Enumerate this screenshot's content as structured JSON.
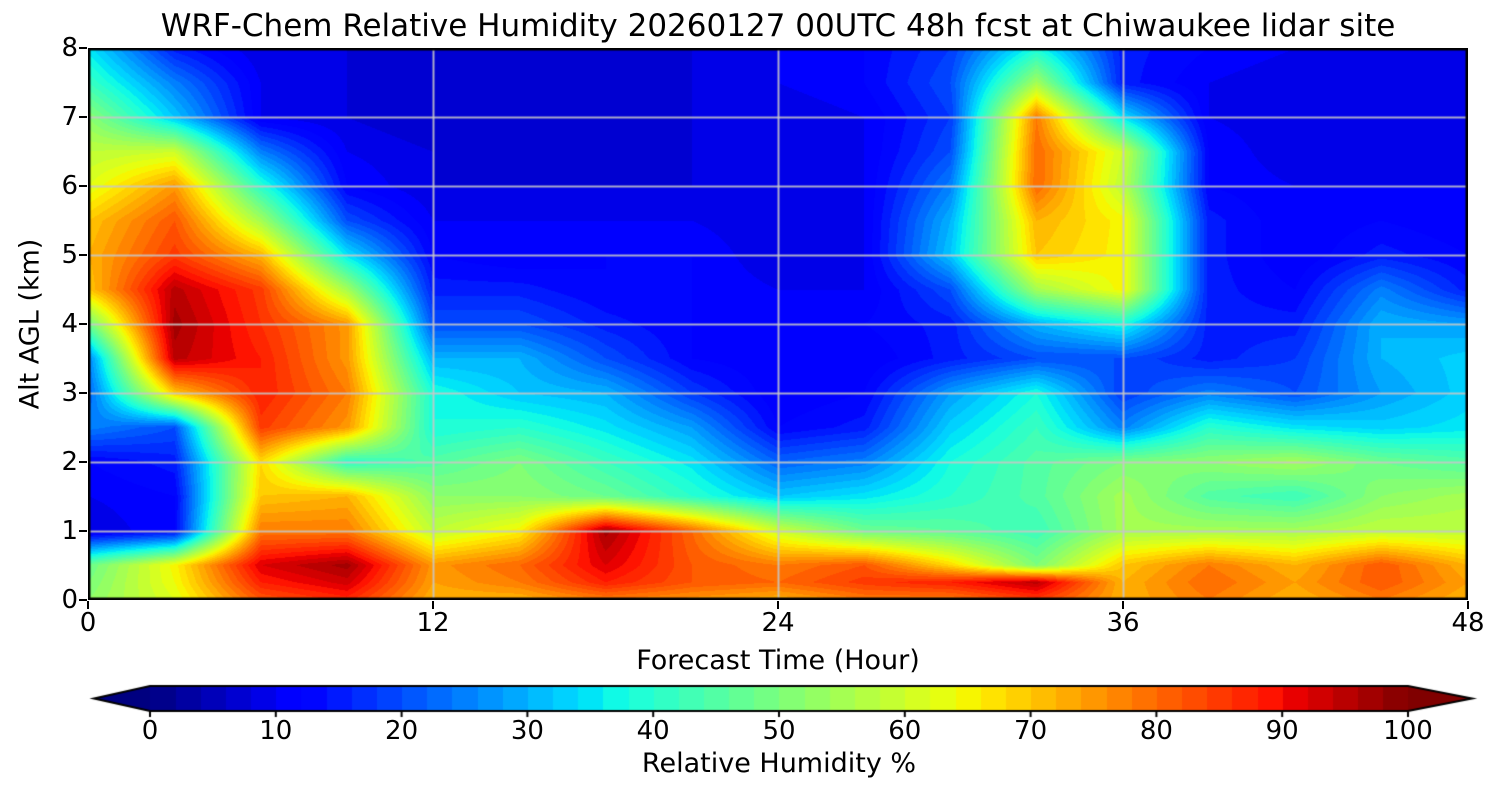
{
  "title": "WRF-Chem Relative Humidity 20260127 00UTC 48h fcst at Chiwaukee lidar site",
  "chart_data": {
    "type": "heatmap",
    "title": "WRF-Chem Relative Humidity 20260127 00UTC 48h fcst at Chiwaukee lidar site",
    "xlabel": "Forecast Time (Hour)",
    "ylabel": "Alt AGL (km)",
    "xlim": [
      0,
      48
    ],
    "ylim": [
      0,
      8
    ],
    "x_ticks": [
      0,
      12,
      24,
      36,
      48
    ],
    "y_ticks": [
      0,
      1,
      2,
      3,
      4,
      5,
      6,
      7,
      8
    ],
    "grid": true,
    "grid_x_lines": [
      12,
      24,
      36
    ],
    "grid_y_lines": [
      1,
      2,
      3,
      4,
      5,
      6,
      7
    ],
    "colormap": "jet",
    "contour_step": 2,
    "colorbar": {
      "label": "Relative Humidity %",
      "ticks": [
        0,
        10,
        20,
        30,
        40,
        50,
        60,
        70,
        80,
        90,
        100
      ],
      "min": 0,
      "max": 100,
      "extend": "both"
    },
    "x_hours": [
      0,
      3,
      6,
      9,
      12,
      15,
      18,
      21,
      24,
      27,
      30,
      33,
      36,
      39,
      42,
      45,
      48
    ],
    "altitudes_km": [
      0,
      0.25,
      0.5,
      1,
      1.5,
      2,
      2.5,
      3,
      3.5,
      4,
      4.5,
      5,
      5.5,
      6,
      6.5,
      7,
      7.5,
      8
    ],
    "values_rh_percent_rows_by_altitude": [
      [
        52,
        62,
        82,
        87,
        72,
        72,
        78,
        75,
        72,
        78,
        78,
        85,
        72,
        78,
        72,
        78,
        72
      ],
      [
        50,
        64,
        88,
        93,
        74,
        78,
        88,
        82,
        80,
        85,
        88,
        95,
        72,
        80,
        74,
        82,
        74
      ],
      [
        48,
        65,
        92,
        97,
        75,
        80,
        92,
        82,
        78,
        82,
        68,
        50,
        70,
        78,
        72,
        82,
        72
      ],
      [
        8,
        12,
        78,
        78,
        58,
        65,
        97,
        80,
        60,
        48,
        46,
        42,
        55,
        55,
        55,
        58,
        58
      ],
      [
        10,
        12,
        70,
        72,
        52,
        52,
        48,
        40,
        32,
        35,
        40,
        45,
        55,
        45,
        42,
        52,
        55
      ],
      [
        12,
        15,
        68,
        40,
        45,
        50,
        42,
        35,
        22,
        25,
        38,
        45,
        50,
        52,
        55,
        48,
        45
      ],
      [
        25,
        20,
        85,
        75,
        38,
        40,
        35,
        28,
        12,
        15,
        33,
        42,
        25,
        40,
        35,
        33,
        35
      ],
      [
        22,
        70,
        88,
        78,
        38,
        32,
        30,
        18,
        10,
        12,
        28,
        38,
        18,
        25,
        20,
        28,
        33
      ],
      [
        25,
        95,
        88,
        75,
        30,
        30,
        20,
        12,
        10,
        10,
        15,
        20,
        20,
        15,
        18,
        30,
        33
      ],
      [
        48,
        97,
        86,
        75,
        20,
        20,
        15,
        12,
        10,
        12,
        15,
        30,
        38,
        15,
        15,
        30,
        28
      ],
      [
        70,
        95,
        85,
        55,
        15,
        15,
        12,
        12,
        10,
        10,
        20,
        55,
        65,
        15,
        12,
        25,
        15
      ],
      [
        72,
        85,
        72,
        35,
        12,
        10,
        12,
        12,
        8,
        10,
        32,
        70,
        65,
        15,
        10,
        15,
        12
      ],
      [
        70,
        82,
        55,
        20,
        10,
        10,
        10,
        10,
        8,
        10,
        30,
        72,
        65,
        15,
        10,
        12,
        10
      ],
      [
        62,
        75,
        40,
        12,
        8,
        8,
        8,
        8,
        8,
        10,
        25,
        80,
        58,
        12,
        10,
        10,
        10
      ],
      [
        58,
        60,
        25,
        10,
        8,
        6,
        6,
        8,
        8,
        10,
        20,
        80,
        60,
        12,
        8,
        8,
        10
      ],
      [
        52,
        32,
        10,
        8,
        6,
        6,
        6,
        8,
        8,
        10,
        18,
        78,
        35,
        10,
        8,
        10,
        10
      ],
      [
        42,
        25,
        10,
        8,
        6,
        6,
        6,
        8,
        10,
        12,
        20,
        55,
        15,
        10,
        8,
        8,
        10
      ],
      [
        35,
        15,
        8,
        8,
        8,
        8,
        8,
        8,
        10,
        12,
        18,
        38,
        15,
        12,
        10,
        10,
        10
      ]
    ]
  },
  "colors": {
    "background": "#ffffff",
    "text": "#000000",
    "grid_line": "#c8c8c8",
    "frame": "#000000"
  }
}
